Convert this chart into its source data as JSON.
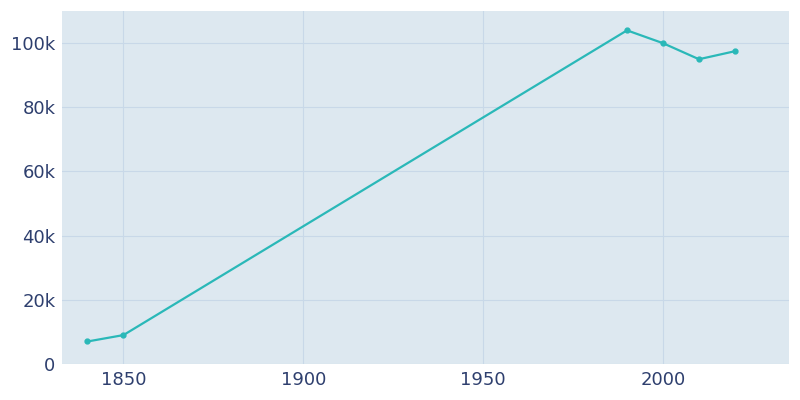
{
  "years": [
    1840,
    1850,
    1990,
    2000,
    2010,
    2020
  ],
  "population": [
    7000,
    9000,
    104000,
    100000,
    95000,
    97500
  ],
  "line_color": "#2ab8b8",
  "marker_color": "#2ab8b8",
  "plot_bg_color": "#dde8f0",
  "figure_bg_color": "#ffffff",
  "grid_color": "#c8d8e8",
  "tick_color": "#2e3f6e",
  "ylim": [
    0,
    110000
  ],
  "xlim": [
    1833,
    2035
  ],
  "yticks": [
    0,
    20000,
    40000,
    60000,
    80000,
    100000
  ],
  "xticks": [
    1850,
    1900,
    1950,
    2000
  ],
  "line_width": 1.6,
  "marker_size": 3.5,
  "tick_fontsize": 13
}
